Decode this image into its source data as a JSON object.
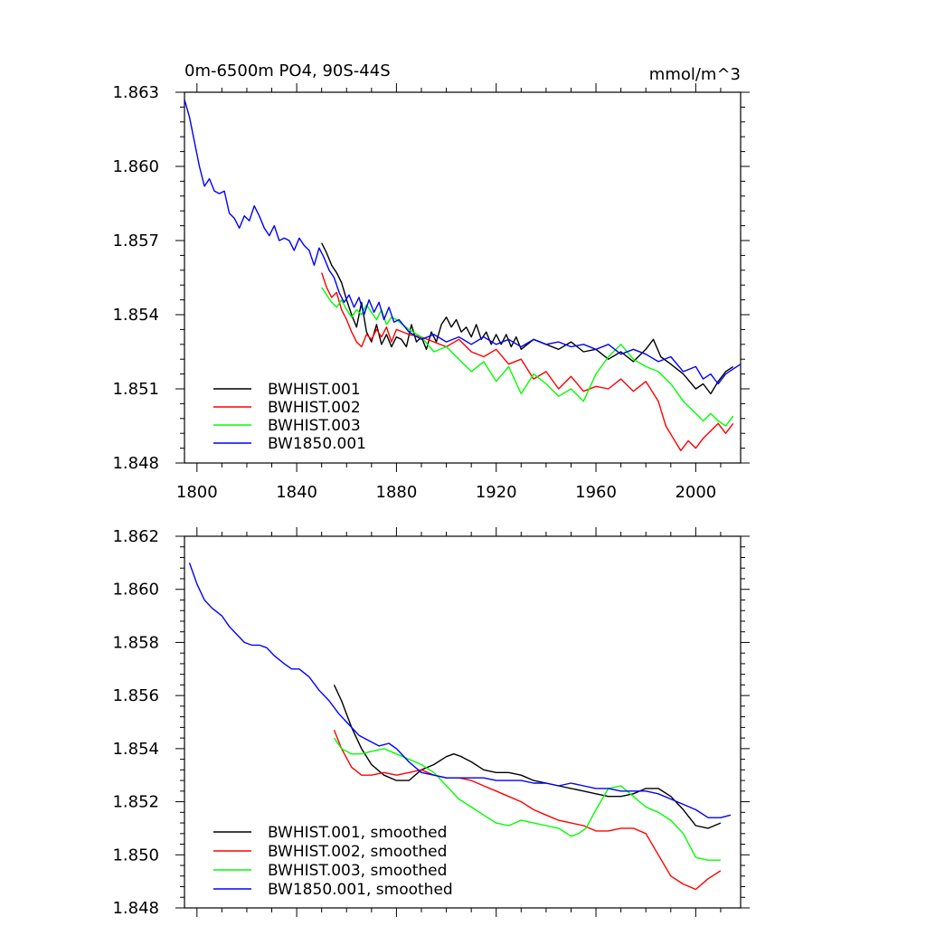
{
  "chart_data": [
    {
      "type": "line",
      "title_left": "0m-6500m PO4, 90S-44S",
      "title_right": "mmol/m^3",
      "xlim": [
        1795,
        2018
      ],
      "ylim": [
        1.848,
        1.863
      ],
      "x_ticks": [
        1800,
        1840,
        1880,
        1920,
        1960,
        2000
      ],
      "x_tick_labels": [
        "1800",
        "1840",
        "1880",
        "1920",
        "1960",
        "2000"
      ],
      "y_ticks": [
        1.848,
        1.851,
        1.854,
        1.857,
        1.86,
        1.863
      ],
      "y_tick_labels": [
        "1.848",
        "1.851",
        "1.854",
        "1.857",
        "1.860",
        "1.863"
      ],
      "legend_position": "bottom-left",
      "grid": false,
      "series": [
        {
          "name": "BWHIST.001",
          "color": "#000000",
          "x": [
            1850,
            1852,
            1854,
            1856,
            1858,
            1860,
            1862,
            1864,
            1866,
            1868,
            1870,
            1872,
            1874,
            1876,
            1878,
            1880,
            1882,
            1884,
            1886,
            1888,
            1890,
            1892,
            1894,
            1896,
            1898,
            1900,
            1902,
            1904,
            1906,
            1908,
            1910,
            1912,
            1914,
            1916,
            1918,
            1920,
            1922,
            1924,
            1926,
            1928,
            1930,
            1935,
            1940,
            1945,
            1950,
            1955,
            1960,
            1965,
            1970,
            1975,
            1980,
            1983,
            1986,
            1990,
            1995,
            2000,
            2003,
            2006,
            2009,
            2012,
            2015
          ],
          "y": [
            1.8569,
            1.8565,
            1.856,
            1.8557,
            1.8553,
            1.8546,
            1.854,
            1.8535,
            1.8545,
            1.8533,
            1.8529,
            1.8536,
            1.8528,
            1.8532,
            1.8527,
            1.8531,
            1.853,
            1.8527,
            1.8536,
            1.8529,
            1.8531,
            1.8526,
            1.8533,
            1.8529,
            1.8536,
            1.8539,
            1.8535,
            1.8538,
            1.8533,
            1.8535,
            1.8531,
            1.8536,
            1.853,
            1.8533,
            1.8528,
            1.8532,
            1.8528,
            1.8532,
            1.8527,
            1.8531,
            1.8526,
            1.853,
            1.8528,
            1.8526,
            1.8529,
            1.8525,
            1.8526,
            1.8522,
            1.8525,
            1.8521,
            1.8526,
            1.853,
            1.8523,
            1.852,
            1.8516,
            1.851,
            1.8512,
            1.8508,
            1.8513,
            1.8517,
            1.8519
          ]
        },
        {
          "name": "BWHIST.002",
          "color": "#ff0000",
          "x": [
            1850,
            1852,
            1854,
            1856,
            1858,
            1860,
            1862,
            1864,
            1866,
            1868,
            1870,
            1872,
            1874,
            1876,
            1878,
            1880,
            1885,
            1890,
            1895,
            1900,
            1905,
            1910,
            1915,
            1920,
            1925,
            1930,
            1935,
            1940,
            1945,
            1950,
            1955,
            1960,
            1965,
            1970,
            1975,
            1980,
            1985,
            1988,
            1991,
            1994,
            1997,
            2000,
            2003,
            2006,
            2009,
            2012,
            2015
          ],
          "y": [
            1.8557,
            1.8551,
            1.8547,
            1.8549,
            1.8542,
            1.8538,
            1.8533,
            1.8529,
            1.8527,
            1.8532,
            1.853,
            1.8534,
            1.8531,
            1.8535,
            1.8529,
            1.8534,
            1.8532,
            1.8531,
            1.8529,
            1.8527,
            1.853,
            1.8525,
            1.8523,
            1.8526,
            1.852,
            1.8522,
            1.8514,
            1.8517,
            1.851,
            1.8515,
            1.8509,
            1.8511,
            1.851,
            1.8514,
            1.8509,
            1.8513,
            1.8505,
            1.8495,
            1.849,
            1.8485,
            1.8489,
            1.8486,
            1.849,
            1.8493,
            1.8496,
            1.8492,
            1.8496
          ]
        },
        {
          "name": "BWHIST.003",
          "color": "#00ff00",
          "x": [
            1850,
            1852,
            1854,
            1856,
            1858,
            1860,
            1862,
            1864,
            1866,
            1868,
            1870,
            1872,
            1874,
            1876,
            1878,
            1880,
            1885,
            1890,
            1895,
            1900,
            1905,
            1910,
            1915,
            1920,
            1925,
            1930,
            1935,
            1940,
            1945,
            1950,
            1955,
            1960,
            1965,
            1970,
            1975,
            1980,
            1985,
            1990,
            1995,
            2000,
            2003,
            2006,
            2009,
            2012,
            2015
          ],
          "y": [
            1.8551,
            1.8548,
            1.8545,
            1.8543,
            1.8546,
            1.8542,
            1.8539,
            1.8542,
            1.854,
            1.8544,
            1.8541,
            1.8538,
            1.8542,
            1.8536,
            1.8539,
            1.8538,
            1.8534,
            1.8531,
            1.8525,
            1.8527,
            1.8522,
            1.8517,
            1.8521,
            1.8513,
            1.8519,
            1.8508,
            1.8516,
            1.8512,
            1.8507,
            1.851,
            1.8505,
            1.8516,
            1.8523,
            1.8528,
            1.8522,
            1.8519,
            1.8517,
            1.8512,
            1.8505,
            1.85,
            1.8497,
            1.85,
            1.8497,
            1.8495,
            1.8499
          ]
        },
        {
          "name": "BW1850.001",
          "color": "#0000ff",
          "x": [
            1795,
            1797,
            1799,
            1801,
            1803,
            1805,
            1807,
            1809,
            1811,
            1813,
            1815,
            1817,
            1819,
            1821,
            1823,
            1825,
            1827,
            1829,
            1831,
            1833,
            1835,
            1837,
            1839,
            1841,
            1843,
            1845,
            1847,
            1849,
            1851,
            1853,
            1855,
            1857,
            1859,
            1861,
            1863,
            1865,
            1867,
            1869,
            1871,
            1873,
            1875,
            1877,
            1879,
            1881,
            1885,
            1890,
            1895,
            1900,
            1905,
            1910,
            1915,
            1920,
            1925,
            1930,
            1935,
            1940,
            1945,
            1950,
            1955,
            1960,
            1965,
            1970,
            1975,
            1980,
            1985,
            1990,
            1995,
            2000,
            2003,
            2006,
            2009,
            2012,
            2015,
            2018
          ],
          "y": [
            1.8627,
            1.862,
            1.861,
            1.86,
            1.8592,
            1.8595,
            1.859,
            1.8589,
            1.859,
            1.8581,
            1.8579,
            1.8575,
            1.858,
            1.8578,
            1.8584,
            1.858,
            1.8575,
            1.8572,
            1.8576,
            1.857,
            1.8571,
            1.857,
            1.8566,
            1.8571,
            1.8568,
            1.8566,
            1.856,
            1.8567,
            1.8563,
            1.8558,
            1.8555,
            1.8549,
            1.8545,
            1.8548,
            1.8543,
            1.8547,
            1.854,
            1.8546,
            1.8541,
            1.8545,
            1.8538,
            1.8543,
            1.8537,
            1.8538,
            1.8533,
            1.853,
            1.8532,
            1.8529,
            1.8531,
            1.8528,
            1.8531,
            1.8528,
            1.853,
            1.8527,
            1.853,
            1.8528,
            1.8529,
            1.8527,
            1.8528,
            1.8526,
            1.8528,
            1.8524,
            1.8526,
            1.8524,
            1.8521,
            1.8523,
            1.8517,
            1.8519,
            1.8514,
            1.8516,
            1.8512,
            1.8516,
            1.8518,
            1.852
          ]
        }
      ]
    },
    {
      "type": "line",
      "xlim": [
        1795,
        2018
      ],
      "ylim": [
        1.848,
        1.862
      ],
      "x_ticks": [
        1800,
        1840,
        1880,
        1920,
        1960,
        2000
      ],
      "x_tick_labels": [],
      "y_ticks": [
        1.848,
        1.85,
        1.852,
        1.854,
        1.856,
        1.858,
        1.86,
        1.862
      ],
      "y_tick_labels": [
        "1.848",
        "1.850",
        "1.852",
        "1.854",
        "1.856",
        "1.858",
        "1.860",
        "1.862"
      ],
      "legend_position": "bottom-left",
      "grid": false,
      "series": [
        {
          "name": "BWHIST.001, smoothed",
          "color": "#000000",
          "x": [
            1855,
            1858,
            1862,
            1866,
            1870,
            1875,
            1880,
            1885,
            1890,
            1895,
            1900,
            1903,
            1906,
            1910,
            1915,
            1920,
            1925,
            1930,
            1935,
            1940,
            1945,
            1950,
            1955,
            1960,
            1965,
            1970,
            1975,
            1980,
            1985,
            1990,
            1995,
            2000,
            2005,
            2010
          ],
          "y": [
            1.8564,
            1.8558,
            1.8548,
            1.854,
            1.8534,
            1.853,
            1.8528,
            1.8528,
            1.8532,
            1.8534,
            1.8537,
            1.8538,
            1.8537,
            1.8535,
            1.8532,
            1.8531,
            1.8531,
            1.853,
            1.8528,
            1.8527,
            1.8526,
            1.8525,
            1.8524,
            1.8523,
            1.8522,
            1.8522,
            1.8523,
            1.8525,
            1.8525,
            1.8522,
            1.8517,
            1.8511,
            1.851,
            1.8512
          ]
        },
        {
          "name": "BWHIST.002, smoothed",
          "color": "#ff0000",
          "x": [
            1855,
            1858,
            1862,
            1866,
            1870,
            1875,
            1880,
            1885,
            1890,
            1895,
            1900,
            1905,
            1910,
            1915,
            1920,
            1925,
            1930,
            1935,
            1940,
            1945,
            1950,
            1955,
            1960,
            1965,
            1970,
            1975,
            1980,
            1985,
            1990,
            1995,
            2000,
            2005,
            2010
          ],
          "y": [
            1.8547,
            1.854,
            1.8533,
            1.853,
            1.853,
            1.8531,
            1.853,
            1.8531,
            1.8532,
            1.853,
            1.8529,
            1.8529,
            1.8528,
            1.8526,
            1.8524,
            1.8522,
            1.852,
            1.8517,
            1.8515,
            1.8513,
            1.8512,
            1.8511,
            1.8509,
            1.8509,
            1.851,
            1.851,
            1.8508,
            1.85,
            1.8492,
            1.8489,
            1.8487,
            1.8491,
            1.8494
          ]
        },
        {
          "name": "BWHIST.003, smoothed",
          "color": "#00ff00",
          "x": [
            1855,
            1858,
            1862,
            1866,
            1870,
            1875,
            1880,
            1885,
            1890,
            1895,
            1900,
            1905,
            1910,
            1915,
            1920,
            1925,
            1930,
            1935,
            1940,
            1945,
            1950,
            1953,
            1956,
            1960,
            1965,
            1970,
            1975,
            1980,
            1985,
            1990,
            1995,
            2000,
            2005,
            2010
          ],
          "y": [
            1.8544,
            1.854,
            1.8538,
            1.8538,
            1.8539,
            1.854,
            1.8538,
            1.8536,
            1.8534,
            1.8531,
            1.8526,
            1.8521,
            1.8518,
            1.8515,
            1.8512,
            1.8511,
            1.8513,
            1.8512,
            1.8511,
            1.851,
            1.8507,
            1.8508,
            1.851,
            1.8517,
            1.8525,
            1.8526,
            1.8522,
            1.8518,
            1.8516,
            1.8513,
            1.8508,
            1.8499,
            1.8498,
            1.8498
          ]
        },
        {
          "name": "BW1850.001, smoothed",
          "color": "#0000ff",
          "x": [
            1797,
            1800,
            1803,
            1806,
            1810,
            1813,
            1816,
            1819,
            1822,
            1825,
            1828,
            1831,
            1835,
            1838,
            1841,
            1845,
            1849,
            1853,
            1857,
            1861,
            1865,
            1869,
            1873,
            1877,
            1880,
            1885,
            1890,
            1895,
            1900,
            1905,
            1910,
            1915,
            1920,
            1925,
            1930,
            1935,
            1940,
            1945,
            1950,
            1955,
            1960,
            1965,
            1970,
            1975,
            1980,
            1985,
            1990,
            1995,
            2000,
            2005,
            2010,
            2014
          ],
          "y": [
            1.861,
            1.8602,
            1.8596,
            1.8593,
            1.859,
            1.8586,
            1.8583,
            1.858,
            1.8579,
            1.8579,
            1.8578,
            1.8575,
            1.8572,
            1.857,
            1.857,
            1.8567,
            1.8562,
            1.8558,
            1.8553,
            1.8549,
            1.8545,
            1.8543,
            1.8541,
            1.8542,
            1.854,
            1.8535,
            1.8531,
            1.853,
            1.8529,
            1.8529,
            1.8529,
            1.8529,
            1.8528,
            1.8528,
            1.8528,
            1.8527,
            1.8527,
            1.8526,
            1.8527,
            1.8526,
            1.8525,
            1.8525,
            1.8524,
            1.8524,
            1.8524,
            1.8523,
            1.8521,
            1.8519,
            1.8517,
            1.8514,
            1.8514,
            1.8515
          ]
        }
      ]
    }
  ]
}
